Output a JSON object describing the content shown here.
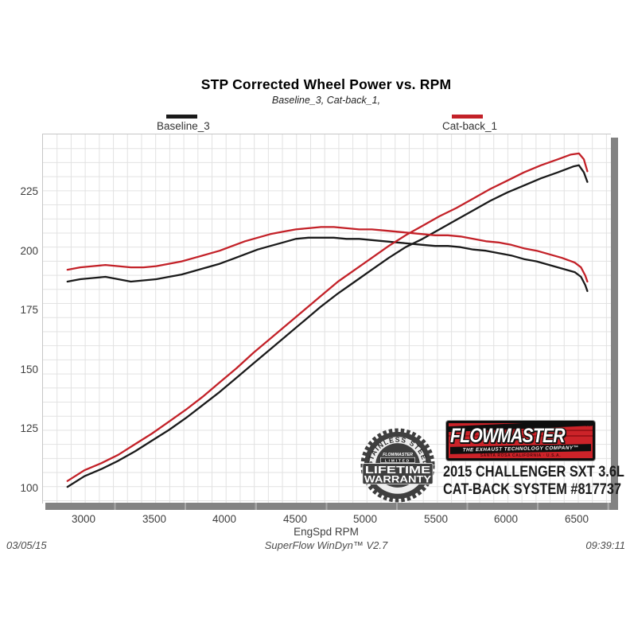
{
  "header": {
    "title": "STP Corrected Wheel Power vs. RPM",
    "subtitle": "Baseline_3, Cat-back_1,"
  },
  "legend": [
    {
      "label": "Baseline_3",
      "color": "#1a1a1a"
    },
    {
      "label": "Cat-back_1",
      "color": "#c32128"
    }
  ],
  "chart_data": {
    "type": "line",
    "title": "STP Corrected Wheel Power vs. RPM",
    "xlabel": "EngSpd RPM",
    "ylabel": "",
    "x_ticks": [
      3000,
      3500,
      4000,
      4500,
      5000,
      5500,
      6000,
      6500
    ],
    "y_ticks": [
      100,
      125,
      150,
      175,
      200,
      225
    ],
    "xlim": [
      2706,
      6737
    ],
    "ylim": [
      94,
      249.5
    ],
    "grid": "on",
    "legend_position": "top",
    "series": [
      {
        "name": "Baseline_3 power",
        "color": "#1a1a1a",
        "points": [
          [
            2880,
            101
          ],
          [
            3000,
            105.5
          ],
          [
            3120,
            108.5
          ],
          [
            3240,
            112
          ],
          [
            3360,
            116
          ],
          [
            3480,
            120.5
          ],
          [
            3600,
            125
          ],
          [
            3720,
            130
          ],
          [
            3840,
            135.5
          ],
          [
            3960,
            141
          ],
          [
            4080,
            147
          ],
          [
            4200,
            153
          ],
          [
            4320,
            159
          ],
          [
            4440,
            165
          ],
          [
            4560,
            171
          ],
          [
            4680,
            177
          ],
          [
            4800,
            182.5
          ],
          [
            4920,
            187.5
          ],
          [
            5040,
            192.5
          ],
          [
            5160,
            197.5
          ],
          [
            5280,
            202
          ],
          [
            5400,
            205.5
          ],
          [
            5520,
            209.5
          ],
          [
            5640,
            213.5
          ],
          [
            5760,
            217.5
          ],
          [
            5880,
            221.5
          ],
          [
            6000,
            225
          ],
          [
            6120,
            228
          ],
          [
            6240,
            231
          ],
          [
            6360,
            233.5
          ],
          [
            6470,
            236
          ],
          [
            6510,
            236.5
          ],
          [
            6545,
            233.5
          ],
          [
            6570,
            229.5
          ]
        ]
      },
      {
        "name": "Baseline_3 torque",
        "color": "#1a1a1a",
        "points": [
          [
            2880,
            187.5
          ],
          [
            2970,
            188.5
          ],
          [
            3060,
            189
          ],
          [
            3150,
            189.5
          ],
          [
            3240,
            188.5
          ],
          [
            3330,
            187.5
          ],
          [
            3420,
            188
          ],
          [
            3510,
            188.5
          ],
          [
            3600,
            189.5
          ],
          [
            3690,
            190.5
          ],
          [
            3780,
            192
          ],
          [
            3870,
            193.5
          ],
          [
            3960,
            195
          ],
          [
            4050,
            197
          ],
          [
            4140,
            199
          ],
          [
            4230,
            201
          ],
          [
            4320,
            202.5
          ],
          [
            4410,
            204
          ],
          [
            4500,
            205.5
          ],
          [
            4590,
            206
          ],
          [
            4680,
            206
          ],
          [
            4770,
            206
          ],
          [
            4860,
            205.5
          ],
          [
            4950,
            205.5
          ],
          [
            5040,
            205
          ],
          [
            5130,
            204.5
          ],
          [
            5220,
            204
          ],
          [
            5310,
            203.5
          ],
          [
            5400,
            203
          ],
          [
            5490,
            202.5
          ],
          [
            5580,
            202.5
          ],
          [
            5670,
            202
          ],
          [
            5760,
            201
          ],
          [
            5850,
            200.5
          ],
          [
            5940,
            199.5
          ],
          [
            6030,
            198.5
          ],
          [
            6120,
            197
          ],
          [
            6210,
            196
          ],
          [
            6300,
            194.5
          ],
          [
            6390,
            193
          ],
          [
            6480,
            191.5
          ],
          [
            6525,
            189.5
          ],
          [
            6555,
            186
          ],
          [
            6570,
            183.5
          ]
        ]
      },
      {
        "name": "Cat-back_1 power",
        "color": "#c32128",
        "points": [
          [
            2880,
            103.5
          ],
          [
            3000,
            108
          ],
          [
            3120,
            111
          ],
          [
            3240,
            114.5
          ],
          [
            3360,
            119
          ],
          [
            3480,
            123.5
          ],
          [
            3600,
            128.5
          ],
          [
            3720,
            133.5
          ],
          [
            3840,
            139
          ],
          [
            3960,
            145
          ],
          [
            4080,
            151
          ],
          [
            4200,
            157.5
          ],
          [
            4320,
            163.5
          ],
          [
            4440,
            169.5
          ],
          [
            4560,
            175.5
          ],
          [
            4680,
            181.5
          ],
          [
            4800,
            187.5
          ],
          [
            4920,
            192.5
          ],
          [
            5040,
            197.5
          ],
          [
            5160,
            202.5
          ],
          [
            5280,
            207
          ],
          [
            5400,
            211
          ],
          [
            5520,
            215
          ],
          [
            5640,
            218.5
          ],
          [
            5760,
            222.5
          ],
          [
            5880,
            226.5
          ],
          [
            6000,
            230
          ],
          [
            6120,
            233.5
          ],
          [
            6240,
            236.5
          ],
          [
            6360,
            239
          ],
          [
            6450,
            241
          ],
          [
            6510,
            241.5
          ],
          [
            6545,
            239
          ],
          [
            6570,
            234
          ]
        ]
      },
      {
        "name": "Cat-back_1 torque",
        "color": "#c32128",
        "points": [
          [
            2880,
            192.5
          ],
          [
            2970,
            193.5
          ],
          [
            3060,
            194
          ],
          [
            3150,
            194.5
          ],
          [
            3240,
            194
          ],
          [
            3330,
            193.5
          ],
          [
            3420,
            193.5
          ],
          [
            3510,
            194
          ],
          [
            3600,
            195
          ],
          [
            3690,
            196
          ],
          [
            3780,
            197.5
          ],
          [
            3870,
            199
          ],
          [
            3960,
            200.5
          ],
          [
            4050,
            202.5
          ],
          [
            4140,
            204.5
          ],
          [
            4230,
            206
          ],
          [
            4320,
            207.5
          ],
          [
            4410,
            208.5
          ],
          [
            4500,
            209.5
          ],
          [
            4590,
            210
          ],
          [
            4680,
            210.5
          ],
          [
            4770,
            210.5
          ],
          [
            4860,
            210
          ],
          [
            4950,
            209.5
          ],
          [
            5040,
            209.5
          ],
          [
            5130,
            209
          ],
          [
            5220,
            208.5
          ],
          [
            5310,
            208
          ],
          [
            5400,
            207.5
          ],
          [
            5490,
            207
          ],
          [
            5580,
            207
          ],
          [
            5670,
            206.5
          ],
          [
            5760,
            205.5
          ],
          [
            5850,
            204.5
          ],
          [
            5940,
            204
          ],
          [
            6030,
            203
          ],
          [
            6120,
            201.5
          ],
          [
            6210,
            200.5
          ],
          [
            6300,
            199
          ],
          [
            6390,
            197.5
          ],
          [
            6480,
            195.5
          ],
          [
            6525,
            193.5
          ],
          [
            6555,
            190
          ],
          [
            6570,
            187.5
          ]
        ]
      }
    ]
  },
  "footer": {
    "date": "03/05/15",
    "software": "SuperFlow WinDyn™ V2.7",
    "time": "09:39:11"
  },
  "branding": {
    "logo_name": "FLOWMASTER",
    "logo_tm": "TM",
    "logo_tagline": "THE EXHAUST TECHNOLOGY COMPANY™",
    "logo_sub": "SANTA ROSA CALIFORNIA · U.S.A.",
    "vehicle_line1": "2015 CHALLENGER SXT 3.6L",
    "vehicle_line2": "CAT-BACK SYSTEM #817737",
    "badge": {
      "arc_top": "STAINLESS STEEL",
      "brand": "FLOWMASTER",
      "limited": "LIMITED",
      "line1": "LIFETIME",
      "line2": "WARRANTY"
    }
  },
  "colors": {
    "baseline": "#1a1a1a",
    "catback": "#c32128",
    "axis_bar": "#838383",
    "grid": "#e2e2e2",
    "logo_red": "#cc2329"
  }
}
